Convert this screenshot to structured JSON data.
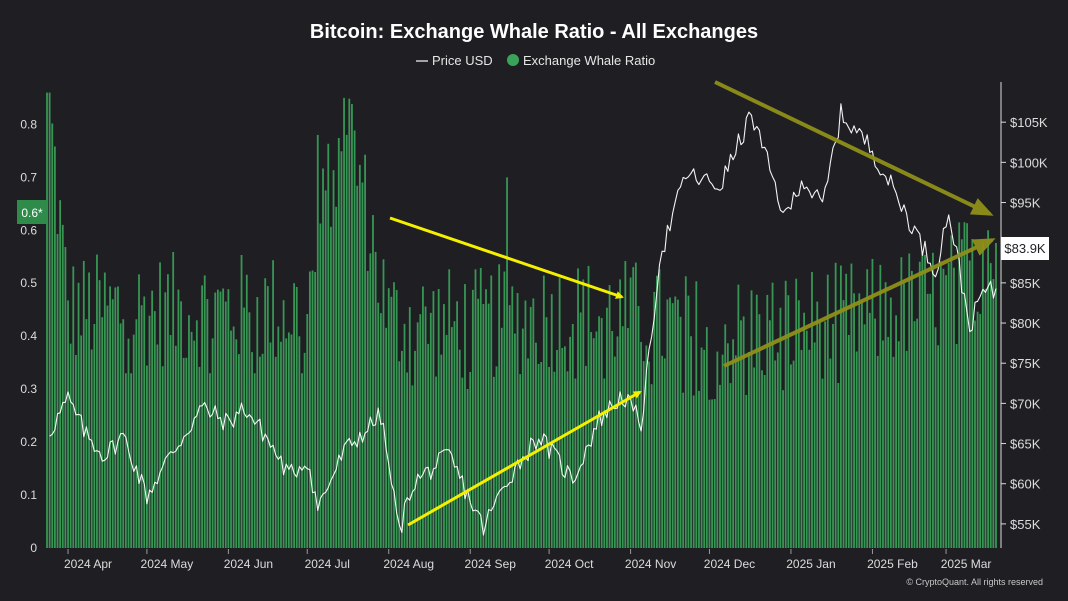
{
  "chart_data": {
    "type": "bar+line",
    "title": "Bitcoin: Exchange Whale Ratio - All Exchanges",
    "legend": [
      {
        "name": "Price USD",
        "symbol": "line",
        "color": "#ffffff"
      },
      {
        "name": "Exchange Whale Ratio",
        "symbol": "circle",
        "color": "#3aa35a"
      }
    ],
    "legend_position": "top-center",
    "x_ticks": [
      "2024 Apr",
      "2024 May",
      "2024 Jun",
      "2024 Jul",
      "2024 Aug",
      "2024 Sep",
      "2024 Oct",
      "2024 Nov",
      "2024 Dec",
      "2025 Jan",
      "2025 Feb",
      "2025 Mar"
    ],
    "left_axis": {
      "range": [
        0,
        0.88
      ],
      "ticks": [
        "0",
        "0.1",
        "0.2",
        "0.3",
        "0.4",
        "0.5",
        "0.6",
        "0.7",
        "0.8"
      ]
    },
    "right_axis": {
      "range": [
        52000,
        110000
      ],
      "ticks": [
        "$55K",
        "$60K",
        "$65K",
        "$70K",
        "$75K",
        "$80K",
        "$85K",
        "$90K",
        "$95K",
        "$100K",
        "$105K"
      ]
    },
    "current_ratio_label": "0.6*",
    "current_price_label": "$83.9K",
    "grid": false,
    "series": [
      {
        "name": "Exchange Whale Ratio",
        "kind": "bar",
        "color": "#3aa35a",
        "x": [
          "2024-03-24",
          "2024-04-01",
          "2024-05-01",
          "2024-06-01",
          "2024-07-01",
          "2024-07-15",
          "2024-08-01",
          "2024-09-01",
          "2024-10-01",
          "2024-11-01",
          "2024-12-01",
          "2025-01-01",
          "2025-02-01",
          "2025-03-01",
          "2025-03-20"
        ],
        "values": [
          0.88,
          0.45,
          0.45,
          0.45,
          0.45,
          0.85,
          0.43,
          0.42,
          0.44,
          0.44,
          0.4,
          0.42,
          0.44,
          0.48,
          0.6
        ]
      },
      {
        "name": "Price USD",
        "kind": "line",
        "color": "#ffffff",
        "axis": "right",
        "x": [
          "2024-03-25",
          "2024-04-01",
          "2024-04-08",
          "2024-04-15",
          "2024-04-22",
          "2024-05-01",
          "2024-05-08",
          "2024-05-15",
          "2024-05-22",
          "2024-06-01",
          "2024-06-07",
          "2024-06-15",
          "2024-06-24",
          "2024-07-01",
          "2024-07-05",
          "2024-07-15",
          "2024-07-29",
          "2024-08-05",
          "2024-08-10",
          "2024-08-24",
          "2024-09-06",
          "2024-09-15",
          "2024-09-27",
          "2024-10-10",
          "2024-10-20",
          "2024-10-29",
          "2024-11-05",
          "2024-11-08",
          "2024-11-12",
          "2024-11-22",
          "2024-12-05",
          "2024-12-17",
          "2024-12-30",
          "2025-01-05",
          "2025-01-13",
          "2025-01-20",
          "2025-01-31",
          "2025-02-10",
          "2025-02-25",
          "2025-03-02",
          "2025-03-10",
          "2025-03-15",
          "2025-03-20"
        ],
        "values": [
          66500,
          70500,
          66000,
          63500,
          66000,
          58500,
          62500,
          66000,
          69500,
          67500,
          69500,
          66000,
          61000,
          63000,
          57000,
          64000,
          68500,
          54000,
          60000,
          63500,
          54500,
          60500,
          66000,
          60500,
          68000,
          71000,
          67500,
          75500,
          88000,
          98500,
          97000,
          106000,
          93000,
          98000,
          94500,
          106000,
          102000,
          96000,
          86500,
          94000,
          79500,
          84000,
          83900
        ]
      }
    ]
  }
}
